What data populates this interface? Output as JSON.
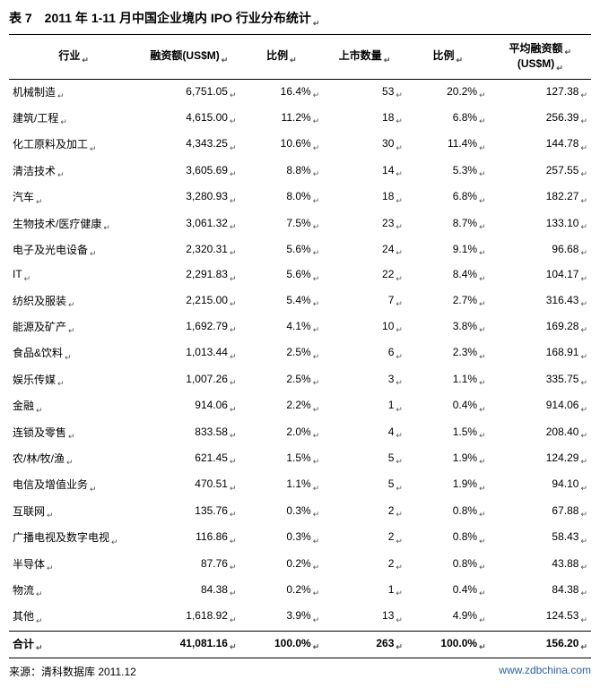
{
  "title": "表 7　2011 年 1-11 月中国企业境内 IPO 行业分布统计",
  "marker": "↵",
  "columns": {
    "c1": "行业",
    "c2": "融资额(US$M)",
    "c3": "比例",
    "c4": "上市数量",
    "c5": "比例",
    "c6_line1": "平均融资额",
    "c6_line2": "(US$M)"
  },
  "rows": [
    {
      "industry": "机械制造",
      "amt": "6,751.05",
      "pct1": "16.4%",
      "cnt": "53",
      "pct2": "20.2%",
      "avg": "127.38"
    },
    {
      "industry": "建筑/工程",
      "amt": "4,615.00",
      "pct1": "11.2%",
      "cnt": "18",
      "pct2": "6.8%",
      "avg": "256.39"
    },
    {
      "industry": "化工原料及加工",
      "amt": "4,343.25",
      "pct1": "10.6%",
      "cnt": "30",
      "pct2": "11.4%",
      "avg": "144.78"
    },
    {
      "industry": "清洁技术",
      "amt": "3,605.69",
      "pct1": "8.8%",
      "cnt": "14",
      "pct2": "5.3%",
      "avg": "257.55"
    },
    {
      "industry": "汽车",
      "amt": "3,280.93",
      "pct1": "8.0%",
      "cnt": "18",
      "pct2": "6.8%",
      "avg": "182.27"
    },
    {
      "industry": "生物技术/医疗健康",
      "amt": "3,061.32",
      "pct1": "7.5%",
      "cnt": "23",
      "pct2": "8.7%",
      "avg": "133.10"
    },
    {
      "industry": "电子及光电设备",
      "amt": "2,320.31",
      "pct1": "5.6%",
      "cnt": "24",
      "pct2": "9.1%",
      "avg": "96.68"
    },
    {
      "industry": "IT",
      "amt": "2,291.83",
      "pct1": "5.6%",
      "cnt": "22",
      "pct2": "8.4%",
      "avg": "104.17"
    },
    {
      "industry": "纺织及服装",
      "amt": "2,215.00",
      "pct1": "5.4%",
      "cnt": "7",
      "pct2": "2.7%",
      "avg": "316.43"
    },
    {
      "industry": "能源及矿产",
      "amt": "1,692.79",
      "pct1": "4.1%",
      "cnt": "10",
      "pct2": "3.8%",
      "avg": "169.28"
    },
    {
      "industry": "食品&饮料",
      "amt": "1,013.44",
      "pct1": "2.5%",
      "cnt": "6",
      "pct2": "2.3%",
      "avg": "168.91"
    },
    {
      "industry": "娱乐传媒",
      "amt": "1,007.26",
      "pct1": "2.5%",
      "cnt": "3",
      "pct2": "1.1%",
      "avg": "335.75"
    },
    {
      "industry": "金融",
      "amt": "914.06",
      "pct1": "2.2%",
      "cnt": "1",
      "pct2": "0.4%",
      "avg": "914.06"
    },
    {
      "industry": "连锁及零售",
      "amt": "833.58",
      "pct1": "2.0%",
      "cnt": "4",
      "pct2": "1.5%",
      "avg": "208.40"
    },
    {
      "industry": "农/林/牧/渔",
      "amt": "621.45",
      "pct1": "1.5%",
      "cnt": "5",
      "pct2": "1.9%",
      "avg": "124.29"
    },
    {
      "industry": "电信及增值业务",
      "amt": "470.51",
      "pct1": "1.1%",
      "cnt": "5",
      "pct2": "1.9%",
      "avg": "94.10"
    },
    {
      "industry": "互联网",
      "amt": "135.76",
      "pct1": "0.3%",
      "cnt": "2",
      "pct2": "0.8%",
      "avg": "67.88"
    },
    {
      "industry": "广播电视及数字电视",
      "amt": "116.86",
      "pct1": "0.3%",
      "cnt": "2",
      "pct2": "0.8%",
      "avg": "58.43"
    },
    {
      "industry": "半导体",
      "amt": "87.76",
      "pct1": "0.2%",
      "cnt": "2",
      "pct2": "0.8%",
      "avg": "43.88"
    },
    {
      "industry": "物流",
      "amt": "84.38",
      "pct1": "0.2%",
      "cnt": "1",
      "pct2": "0.4%",
      "avg": "84.38"
    },
    {
      "industry": "其他",
      "amt": "1,618.92",
      "pct1": "3.9%",
      "cnt": "13",
      "pct2": "4.9%",
      "avg": "124.53"
    }
  ],
  "total": {
    "industry": "合计",
    "amt": "41,081.16",
    "pct1": "100.0%",
    "cnt": "263",
    "pct2": "100.0%",
    "avg": "156.20"
  },
  "source": "来源：清科数据库 2011.12",
  "url": "www.zdbchina.com"
}
